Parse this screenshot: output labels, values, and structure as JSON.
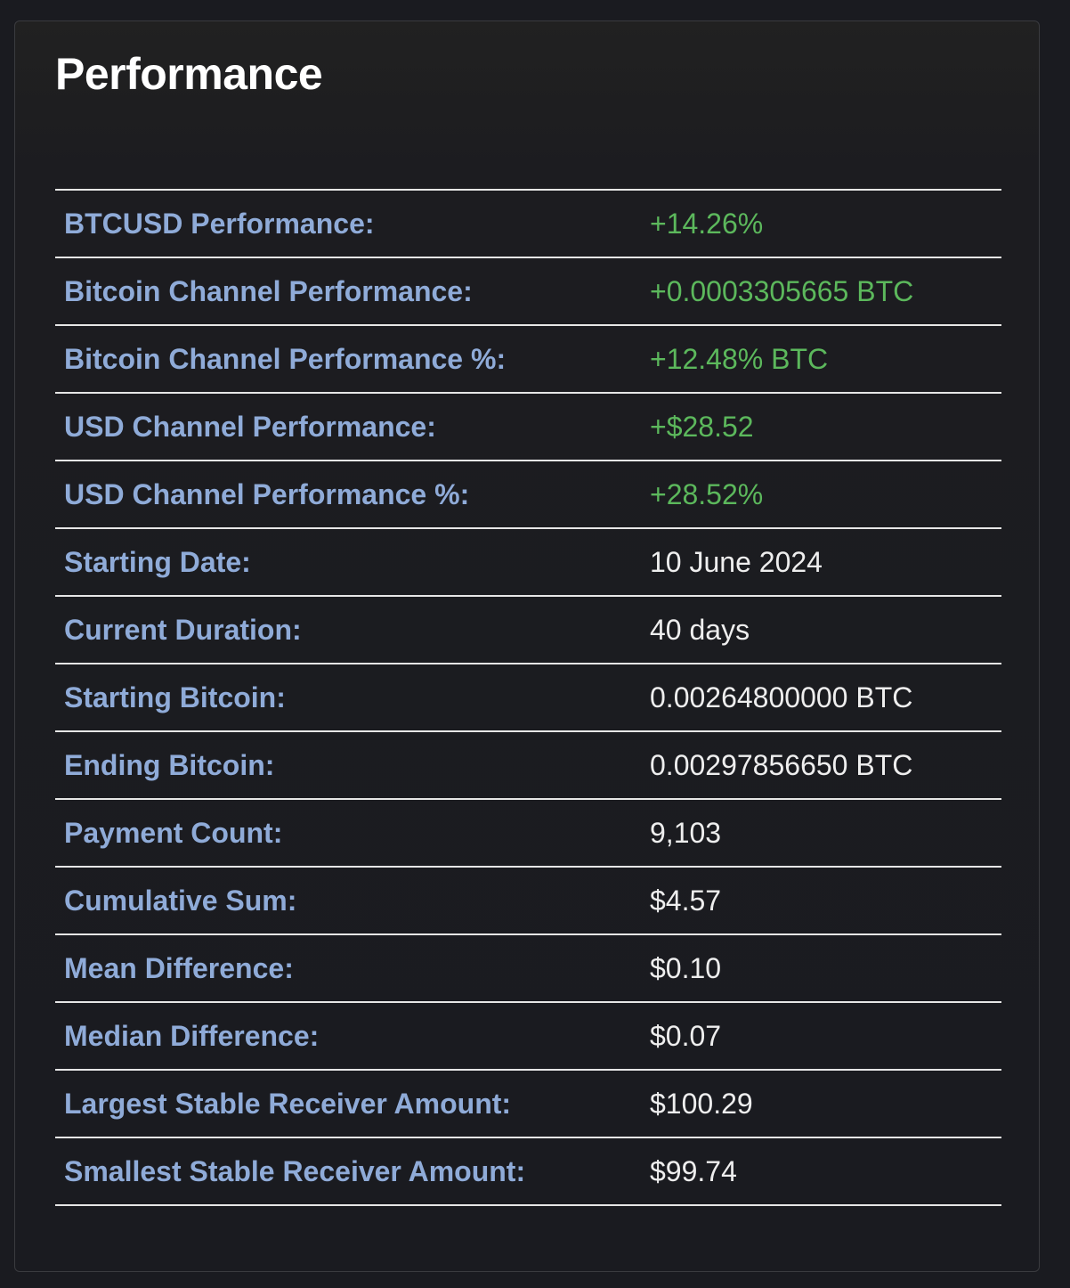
{
  "card": {
    "title": "Performance"
  },
  "colors": {
    "label": "#8fabd8",
    "positive_value": "#5cb85c",
    "neutral_value": "#eeeeee",
    "background": "#1a1b20"
  },
  "rows": [
    {
      "label": "BTCUSD Performance:",
      "value": "+14.26%",
      "positive": true
    },
    {
      "label": "Bitcoin Channel Performance:",
      "value": "+0.0003305665 BTC",
      "positive": true
    },
    {
      "label": "Bitcoin Channel Performance %:",
      "value": "+12.48% BTC",
      "positive": true
    },
    {
      "label": "USD Channel Performance:",
      "value": "+$28.52",
      "positive": true
    },
    {
      "label": "USD Channel Performance %:",
      "value": "+28.52%",
      "positive": true
    },
    {
      "label": "Starting Date:",
      "value": "10 June 2024",
      "positive": false
    },
    {
      "label": "Current Duration:",
      "value": "40 days",
      "positive": false
    },
    {
      "label": "Starting Bitcoin:",
      "value": "0.00264800000 BTC",
      "positive": false
    },
    {
      "label": "Ending Bitcoin:",
      "value": "0.00297856650 BTC",
      "positive": false
    },
    {
      "label": "Payment Count:",
      "value": "9,103",
      "positive": false
    },
    {
      "label": "Cumulative Sum:",
      "value": "$4.57",
      "positive": false
    },
    {
      "label": "Mean Difference:",
      "value": "$0.10",
      "positive": false
    },
    {
      "label": "Median Difference:",
      "value": "$0.07",
      "positive": false
    },
    {
      "label": "Largest Stable Receiver Amount:",
      "value": "$100.29",
      "positive": false
    },
    {
      "label": "Smallest Stable Receiver Amount:",
      "value": "$99.74",
      "positive": false
    }
  ]
}
